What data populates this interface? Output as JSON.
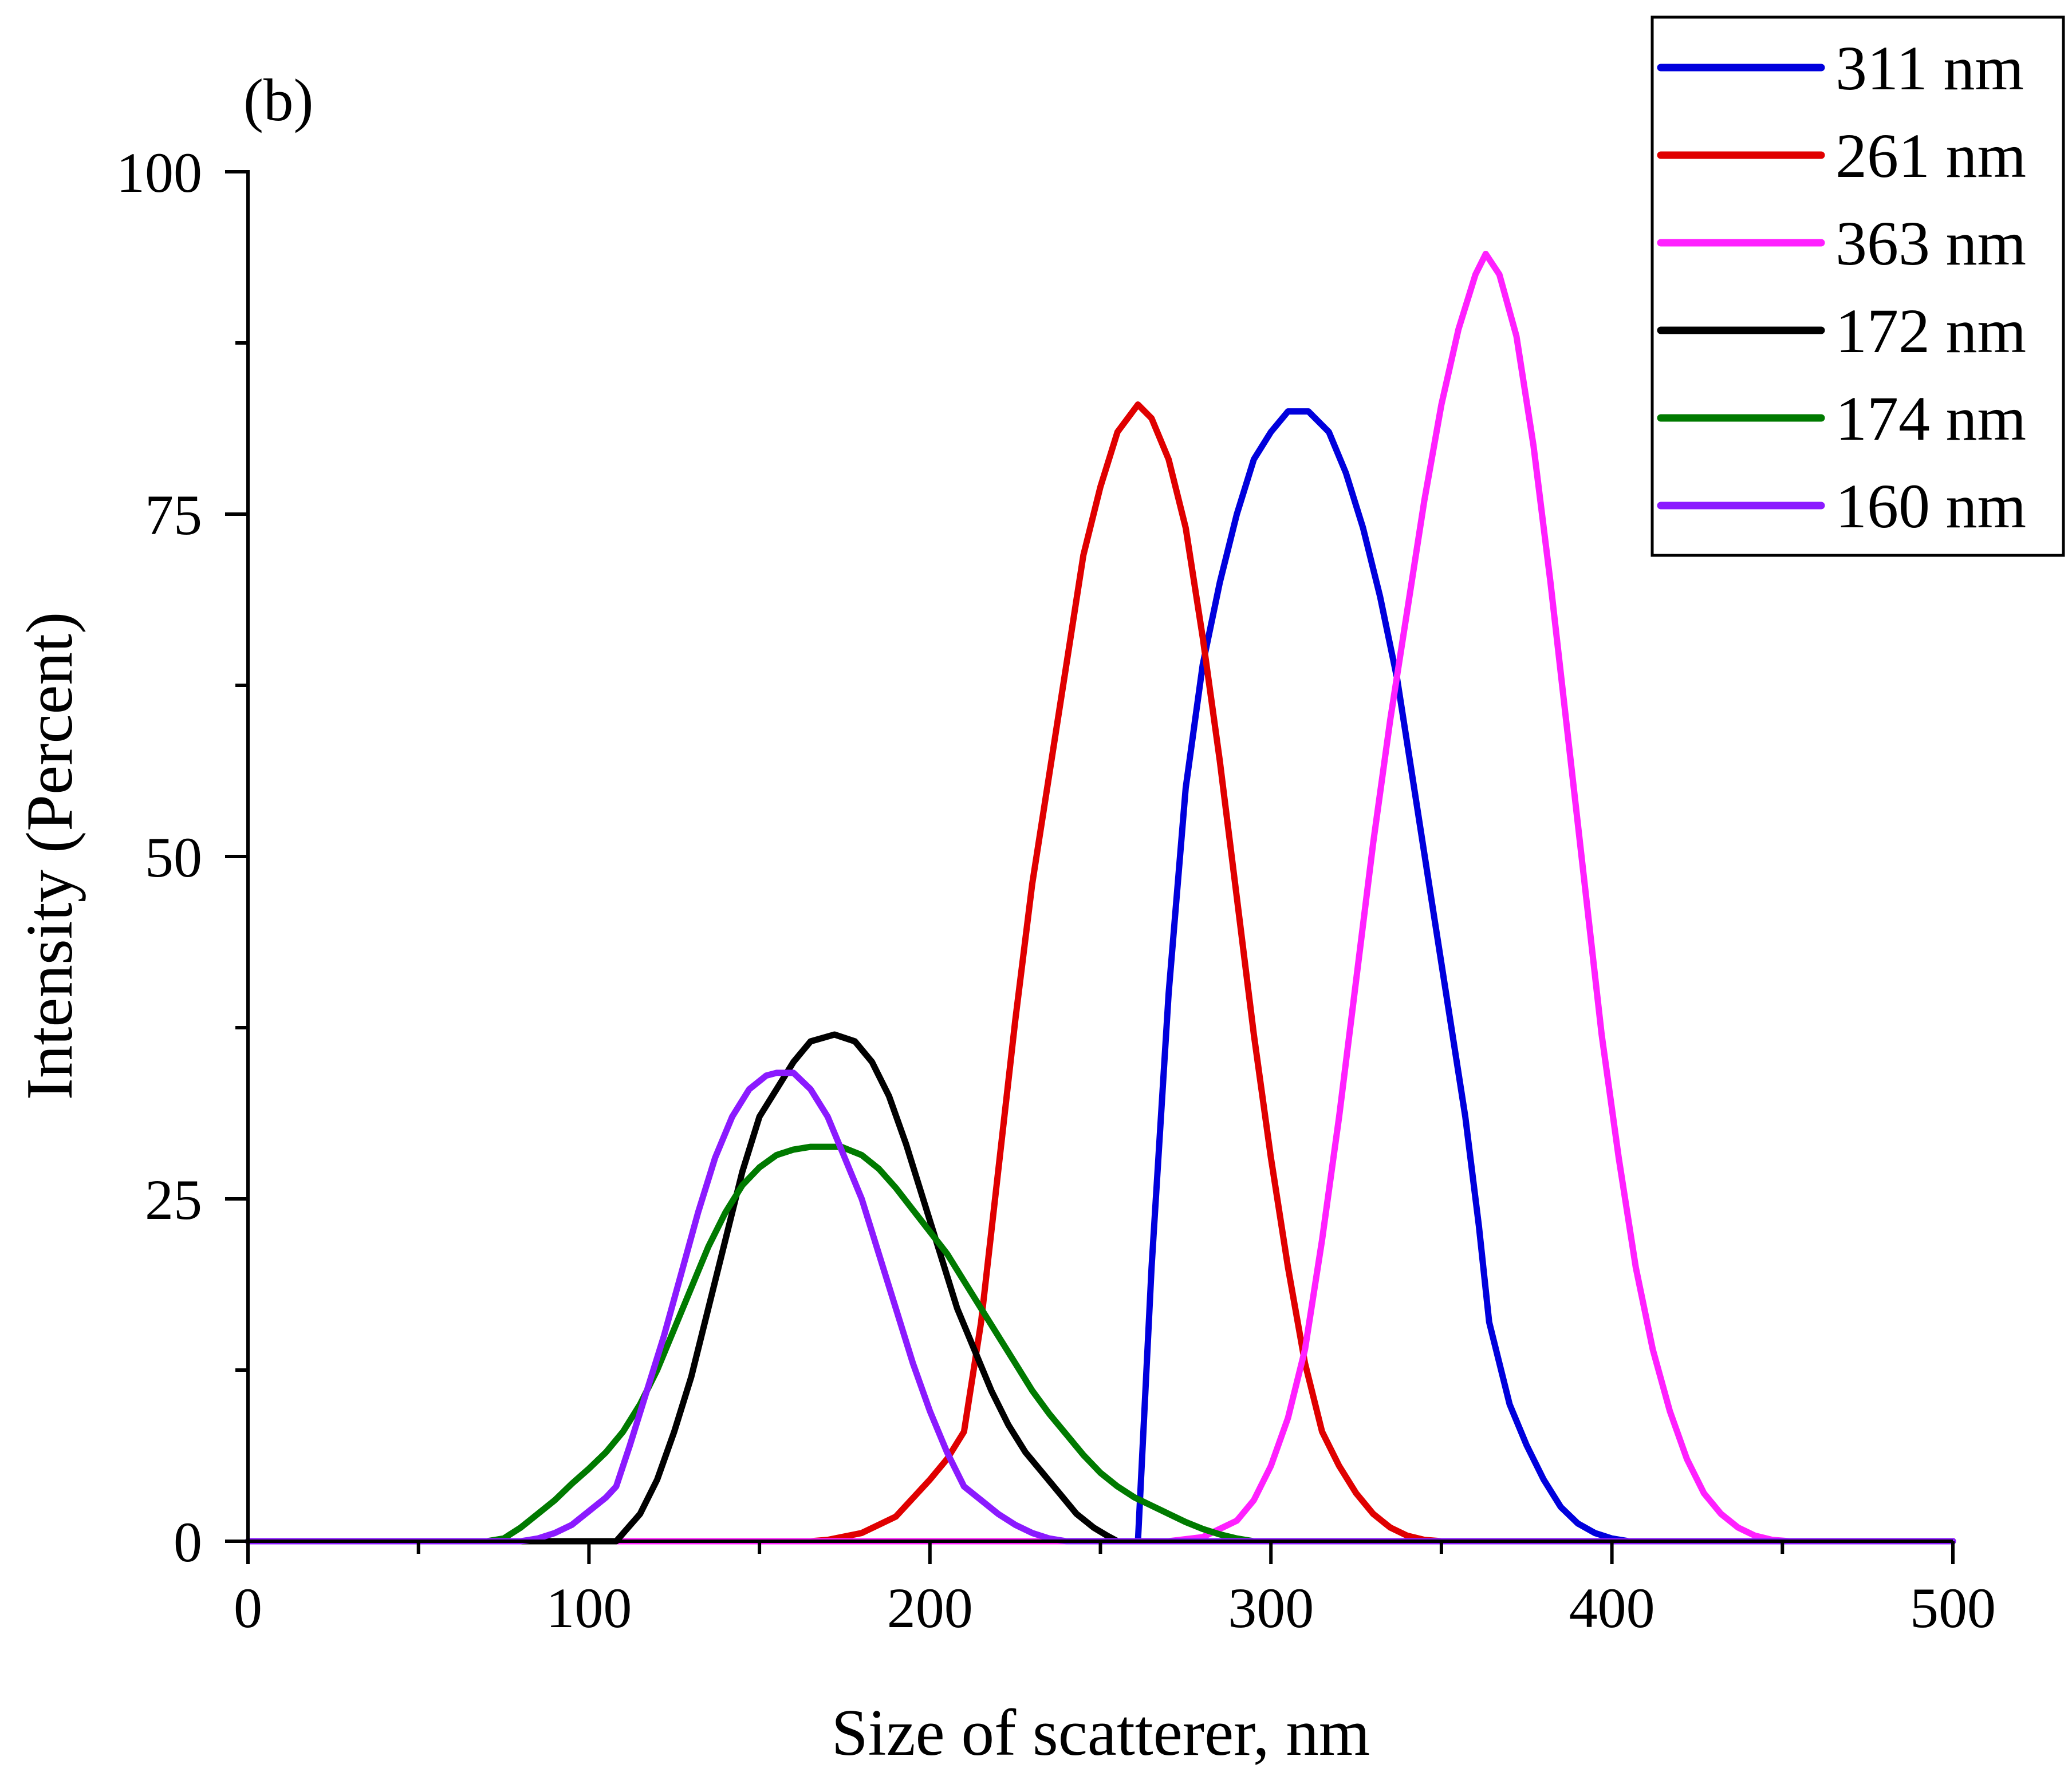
{
  "chart_data": {
    "type": "line",
    "panel_label": "(b)",
    "xlabel": "Size of scatterer, nm",
    "ylabel": "Intensity (Percent)",
    "xlim": [
      0,
      500
    ],
    "ylim": [
      0,
      100
    ],
    "x_ticks": [
      0,
      100,
      200,
      300,
      400,
      500
    ],
    "x_tick_labels": [
      "0",
      "100",
      "200",
      "300",
      "400",
      "500"
    ],
    "y_ticks": [
      0,
      25,
      50,
      75,
      100
    ],
    "y_tick_labels": [
      "0",
      "25",
      "50",
      "75",
      "100"
    ],
    "grid": false,
    "legend_position": "top-right",
    "series": [
      {
        "name": "311 nm",
        "color": "#0000dd",
        "points": [
          [
            0,
            0
          ],
          [
            255,
            0
          ],
          [
            261,
            0
          ],
          [
            265,
            20
          ],
          [
            270,
            40
          ],
          [
            275,
            55
          ],
          [
            280,
            64
          ],
          [
            285,
            70
          ],
          [
            290,
            75
          ],
          [
            295,
            79
          ],
          [
            300,
            81
          ],
          [
            305,
            82.5
          ],
          [
            311,
            82.5
          ],
          [
            317,
            81
          ],
          [
            322,
            78
          ],
          [
            327,
            74
          ],
          [
            332,
            69
          ],
          [
            337,
            63
          ],
          [
            342,
            55
          ],
          [
            347,
            47
          ],
          [
            352,
            39
          ],
          [
            357,
            31
          ],
          [
            361,
            23
          ],
          [
            364,
            16
          ],
          [
            370,
            10
          ],
          [
            375,
            7
          ],
          [
            380,
            4.5
          ],
          [
            385,
            2.5
          ],
          [
            390,
            1.3
          ],
          [
            395,
            0.6
          ],
          [
            400,
            0.2
          ],
          [
            405,
            0
          ],
          [
            500,
            0
          ]
        ]
      },
      {
        "name": "261 nm",
        "color": "#e00000",
        "points": [
          [
            0,
            0
          ],
          [
            165,
            0
          ],
          [
            170,
            0.1
          ],
          [
            180,
            0.6
          ],
          [
            190,
            1.8
          ],
          [
            200,
            4.5
          ],
          [
            205,
            6
          ],
          [
            210,
            8
          ],
          [
            215,
            16
          ],
          [
            220,
            27
          ],
          [
            225,
            38
          ],
          [
            230,
            48
          ],
          [
            235,
            56
          ],
          [
            240,
            64
          ],
          [
            245,
            72
          ],
          [
            250,
            77
          ],
          [
            255,
            81
          ],
          [
            261,
            83
          ],
          [
            265,
            82
          ],
          [
            270,
            79
          ],
          [
            275,
            74
          ],
          [
            280,
            66
          ],
          [
            285,
            57
          ],
          [
            290,
            47
          ],
          [
            295,
            37
          ],
          [
            300,
            28
          ],
          [
            305,
            20
          ],
          [
            310,
            13
          ],
          [
            315,
            8
          ],
          [
            320,
            5.5
          ],
          [
            325,
            3.5
          ],
          [
            330,
            2
          ],
          [
            335,
            1
          ],
          [
            340,
            0.4
          ],
          [
            345,
            0.1
          ],
          [
            350,
            0
          ],
          [
            500,
            0
          ]
        ]
      },
      {
        "name": "363 nm",
        "color": "#ff20ff",
        "points": [
          [
            0,
            0
          ],
          [
            270,
            0
          ],
          [
            280,
            0.3
          ],
          [
            290,
            1.5
          ],
          [
            295,
            3
          ],
          [
            300,
            5.5
          ],
          [
            305,
            9
          ],
          [
            310,
            14
          ],
          [
            315,
            22
          ],
          [
            320,
            31
          ],
          [
            325,
            41
          ],
          [
            330,
            51
          ],
          [
            335,
            60
          ],
          [
            340,
            68
          ],
          [
            345,
            76
          ],
          [
            350,
            83
          ],
          [
            355,
            88.5
          ],
          [
            360,
            92.5
          ],
          [
            363,
            94
          ],
          [
            367,
            92.5
          ],
          [
            372,
            88
          ],
          [
            377,
            80
          ],
          [
            382,
            70
          ],
          [
            387,
            59
          ],
          [
            392,
            48
          ],
          [
            397,
            37
          ],
          [
            402,
            28
          ],
          [
            407,
            20
          ],
          [
            412,
            14
          ],
          [
            417,
            9.5
          ],
          [
            422,
            6
          ],
          [
            427,
            3.5
          ],
          [
            432,
            2
          ],
          [
            437,
            1
          ],
          [
            442,
            0.4
          ],
          [
            447,
            0.1
          ],
          [
            452,
            0
          ],
          [
            500,
            0
          ]
        ]
      },
      {
        "name": "172 nm",
        "color": "#000000",
        "points": [
          [
            0,
            0
          ],
          [
            105,
            0
          ],
          [
            108,
            0
          ],
          [
            115,
            2
          ],
          [
            120,
            4.5
          ],
          [
            125,
            8
          ],
          [
            130,
            12
          ],
          [
            135,
            17
          ],
          [
            140,
            22
          ],
          [
            145,
            27
          ],
          [
            150,
            31
          ],
          [
            155,
            33
          ],
          [
            160,
            35
          ],
          [
            165,
            36.5
          ],
          [
            172,
            37
          ],
          [
            178,
            36.5
          ],
          [
            183,
            35
          ],
          [
            188,
            32.5
          ],
          [
            193,
            29
          ],
          [
            198,
            25
          ],
          [
            203,
            21
          ],
          [
            208,
            17
          ],
          [
            213,
            14
          ],
          [
            218,
            11
          ],
          [
            223,
            8.5
          ],
          [
            228,
            6.5
          ],
          [
            233,
            5
          ],
          [
            238,
            3.5
          ],
          [
            243,
            2
          ],
          [
            248,
            1
          ],
          [
            252,
            0.4
          ],
          [
            255,
            0
          ],
          [
            500,
            0
          ]
        ]
      },
      {
        "name": "174 nm",
        "color": "#007a00",
        "points": [
          [
            0,
            0
          ],
          [
            70,
            0
          ],
          [
            75,
            0.2
          ],
          [
            80,
            1
          ],
          [
            85,
            2
          ],
          [
            90,
            3
          ],
          [
            95,
            4.2
          ],
          [
            100,
            5.3
          ],
          [
            105,
            6.5
          ],
          [
            110,
            8
          ],
          [
            115,
            10
          ],
          [
            120,
            12.5
          ],
          [
            125,
            15.5
          ],
          [
            130,
            18.5
          ],
          [
            135,
            21.5
          ],
          [
            140,
            24
          ],
          [
            145,
            26
          ],
          [
            150,
            27.3
          ],
          [
            155,
            28.2
          ],
          [
            160,
            28.6
          ],
          [
            165,
            28.8
          ],
          [
            170,
            28.8
          ],
          [
            174,
            28.8
          ],
          [
            180,
            28.2
          ],
          [
            185,
            27.2
          ],
          [
            190,
            25.8
          ],
          [
            195,
            24.2
          ],
          [
            200,
            22.6
          ],
          [
            205,
            21
          ],
          [
            210,
            19
          ],
          [
            215,
            17
          ],
          [
            220,
            15
          ],
          [
            225,
            13
          ],
          [
            230,
            11
          ],
          [
            235,
            9.3
          ],
          [
            240,
            7.8
          ],
          [
            245,
            6.3
          ],
          [
            250,
            5
          ],
          [
            255,
            4
          ],
          [
            260,
            3.2
          ],
          [
            265,
            2.6
          ],
          [
            270,
            2
          ],
          [
            275,
            1.4
          ],
          [
            280,
            0.9
          ],
          [
            285,
            0.5
          ],
          [
            290,
            0.2
          ],
          [
            295,
            0
          ],
          [
            500,
            0
          ]
        ]
      },
      {
        "name": "160 nm",
        "color": "#8b1aff",
        "points": [
          [
            0,
            0
          ],
          [
            80,
            0
          ],
          [
            85,
            0.2
          ],
          [
            90,
            0.6
          ],
          [
            95,
            1.2
          ],
          [
            100,
            2.2
          ],
          [
            105,
            3.2
          ],
          [
            108,
            4
          ],
          [
            112,
            7
          ],
          [
            117,
            11
          ],
          [
            122,
            15
          ],
          [
            127,
            19.5
          ],
          [
            132,
            24
          ],
          [
            137,
            28
          ],
          [
            142,
            31
          ],
          [
            147,
            33
          ],
          [
            152,
            34
          ],
          [
            155,
            34.2
          ],
          [
            160,
            34.2
          ],
          [
            165,
            33
          ],
          [
            170,
            31
          ],
          [
            175,
            28
          ],
          [
            180,
            25
          ],
          [
            185,
            21
          ],
          [
            190,
            17
          ],
          [
            195,
            13
          ],
          [
            200,
            9.5
          ],
          [
            205,
            6.5
          ],
          [
            210,
            4
          ],
          [
            215,
            3
          ],
          [
            220,
            2
          ],
          [
            225,
            1.2
          ],
          [
            230,
            0.6
          ],
          [
            235,
            0.2
          ],
          [
            240,
            0
          ],
          [
            500,
            0
          ]
        ]
      }
    ]
  }
}
